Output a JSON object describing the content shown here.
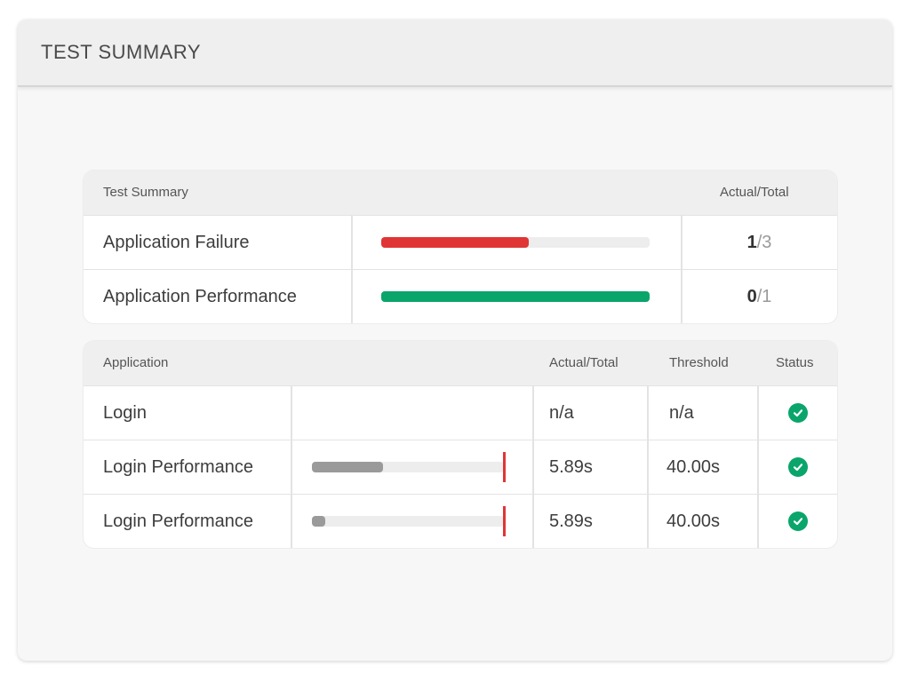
{
  "window": {
    "title": "TEST SUMMARY"
  },
  "summary": {
    "headers": {
      "name": "Test Summary",
      "ratio": "Actual/Total"
    },
    "rows": [
      {
        "name": "Application Failure",
        "actual": "1",
        "sep": "/",
        "total": "3",
        "progress": 0.55,
        "color": "#e03535"
      },
      {
        "name": "Application Performance",
        "actual": "0",
        "sep": "/",
        "total": "1",
        "progress": 1.0,
        "color": "#0aa56b"
      }
    ]
  },
  "applications": {
    "headers": {
      "name": "Application",
      "actual": "Actual/Total",
      "threshold": "Threshold",
      "status": "Status"
    },
    "rows": [
      {
        "name": "Login",
        "actual": "n/a",
        "threshold": "n/a",
        "status": "pass",
        "icon": "check-circle-icon"
      },
      {
        "name": "Login Performance",
        "actual": "5.89s",
        "threshold": "40.00s",
        "status": "pass",
        "icon": "check-circle-icon",
        "bar_fraction": 0.37
      },
      {
        "name": "Login Performance",
        "actual": "5.89s",
        "threshold": "40.00s",
        "status": "pass",
        "icon": "check-circle-icon",
        "bar_fraction": 0.07
      }
    ]
  },
  "colors": {
    "fail": "#e03535",
    "pass": "#0aa56b",
    "bar_neutral": "#9a9a9a",
    "threshold_marker": "#e03535"
  }
}
